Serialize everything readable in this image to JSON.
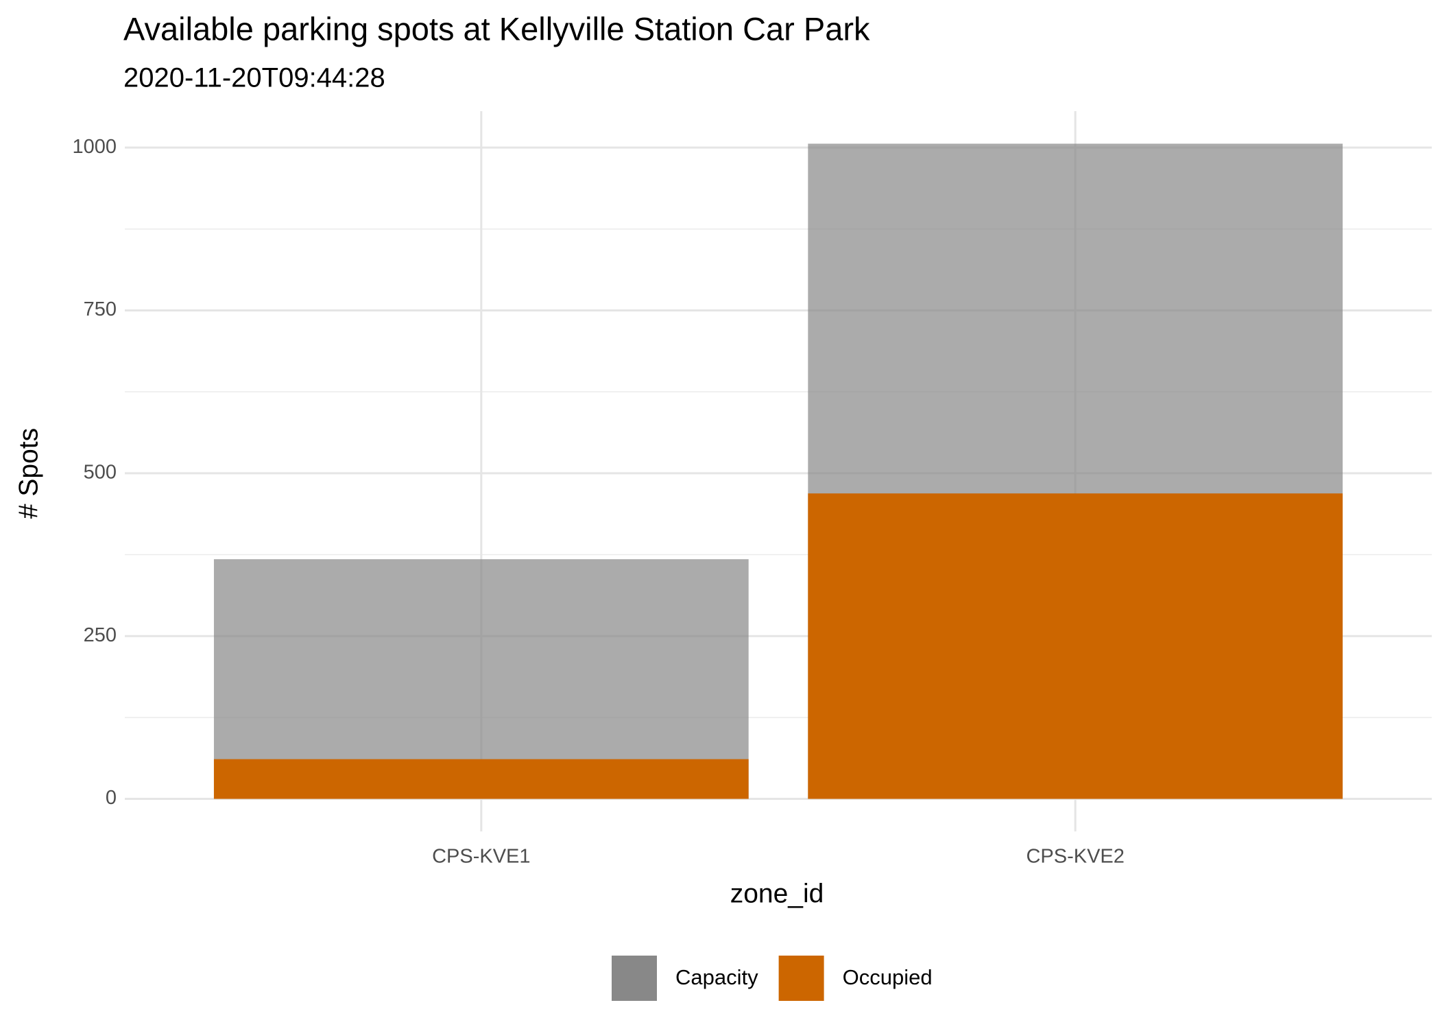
{
  "chart_data": {
    "type": "overlap-bar",
    "title": "Available parking spots at Kellyville Station Car Park",
    "subtitle": "2020-11-20T09:44:28",
    "x_label": "zone_id",
    "y_label": "# Spots",
    "categories": [
      "CPS-KVE1",
      "CPS-KVE2"
    ],
    "series": [
      {
        "name": "Capacity",
        "color": "#888888",
        "alpha": 0.7,
        "values": [
          368,
          1006
        ]
      },
      {
        "name": "Occupied",
        "color": "#cc6600",
        "alpha": 1,
        "values": [
          61,
          469
        ]
      }
    ],
    "ylim": [
      -50,
      1056
    ],
    "yticks": [
      0,
      250,
      500,
      750,
      1000
    ],
    "grid": true,
    "legend": "bottom"
  }
}
